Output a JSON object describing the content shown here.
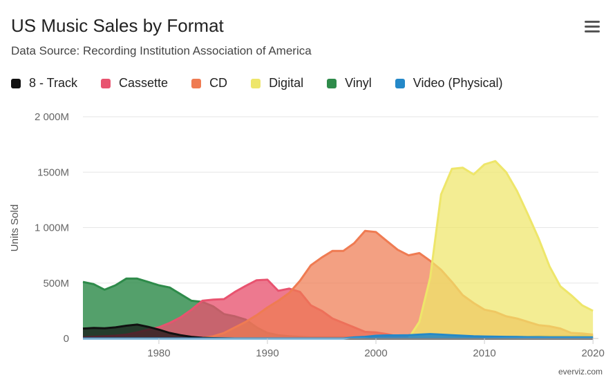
{
  "title": "US Music Sales by Format",
  "subtitle": "Data Source: Recording Institution Association of America",
  "credit": "everviz.com",
  "menu_icon": "hamburger-icon",
  "chart_data": {
    "type": "area",
    "title": "US Music Sales by Format",
    "subtitle": "Data Source: Recording Institution Association of America",
    "xlabel": "",
    "ylabel": "Units Sold",
    "xlim": [
      1973,
      2020
    ],
    "ylim": [
      0,
      2000
    ],
    "y_ticks": [
      "0",
      "500M",
      "1 000M",
      "1500M",
      "2 000M"
    ],
    "y_tick_values": [
      0,
      500,
      1000,
      1500,
      2000
    ],
    "x_ticks": [
      "1980",
      "1990",
      "2000",
      "2010",
      "2020"
    ],
    "x_tick_values": [
      1980,
      1990,
      2000,
      2010,
      2020
    ],
    "grid": true,
    "legend": "top-left",
    "x": [
      1973,
      1974,
      1975,
      1976,
      1977,
      1978,
      1979,
      1980,
      1981,
      1982,
      1983,
      1984,
      1985,
      1986,
      1987,
      1988,
      1989,
      1990,
      1991,
      1992,
      1993,
      1994,
      1995,
      1996,
      1997,
      1998,
      1999,
      2000,
      2001,
      2002,
      2003,
      2004,
      2005,
      2006,
      2007,
      2008,
      2009,
      2010,
      2011,
      2012,
      2013,
      2014,
      2015,
      2016,
      2017,
      2018,
      2019,
      2020
    ],
    "series": [
      {
        "name": "8 - Track",
        "color": "#111111",
        "values": [
          90,
          95,
          92,
          100,
          115,
          125,
          105,
          80,
          50,
          30,
          15,
          6,
          3,
          1,
          0,
          0,
          0,
          0,
          0,
          0,
          0,
          0,
          0,
          0,
          0,
          0,
          0,
          0,
          0,
          0,
          0,
          0,
          0,
          0,
          0,
          0,
          0,
          0,
          0,
          0,
          0,
          0,
          0,
          0,
          0,
          0,
          0,
          0
        ]
      },
      {
        "name": "Cassette",
        "color": "#e8536f",
        "values": [
          10,
          15,
          20,
          25,
          35,
          55,
          80,
          100,
          140,
          190,
          260,
          340,
          350,
          355,
          420,
          475,
          525,
          530,
          430,
          450,
          420,
          300,
          250,
          180,
          140,
          100,
          60,
          55,
          40,
          20,
          10,
          5,
          3,
          1,
          0,
          0,
          0,
          0,
          0,
          0,
          0,
          0,
          0,
          0,
          0,
          0,
          0,
          0
        ]
      },
      {
        "name": "CD",
        "color": "#ef7b52",
        "values": [
          0,
          0,
          0,
          0,
          0,
          0,
          0,
          0,
          0,
          0,
          1,
          6,
          20,
          50,
          100,
          150,
          210,
          280,
          340,
          410,
          520,
          660,
          730,
          790,
          790,
          860,
          970,
          960,
          880,
          800,
          750,
          770,
          700,
          620,
          510,
          390,
          320,
          260,
          240,
          200,
          180,
          150,
          120,
          110,
          90,
          50,
          45,
          35
        ]
      },
      {
        "name": "Digital",
        "color": "#eee66a",
        "values": [
          0,
          0,
          0,
          0,
          0,
          0,
          0,
          0,
          0,
          0,
          0,
          0,
          0,
          0,
          0,
          0,
          0,
          0,
          0,
          0,
          0,
          0,
          0,
          0,
          0,
          0,
          0,
          0,
          0,
          0,
          0,
          150,
          550,
          1300,
          1530,
          1540,
          1480,
          1570,
          1600,
          1500,
          1330,
          1120,
          900,
          650,
          470,
          390,
          300,
          250
        ]
      },
      {
        "name": "Vinyl",
        "color": "#2e8b4a",
        "values": [
          510,
          490,
          440,
          480,
          540,
          540,
          510,
          480,
          460,
          400,
          340,
          330,
          290,
          220,
          200,
          170,
          100,
          50,
          30,
          20,
          15,
          10,
          10,
          10,
          10,
          10,
          10,
          10,
          10,
          10,
          10,
          10,
          10,
          10,
          10,
          10,
          10,
          10,
          10,
          15,
          15,
          15,
          20,
          20,
          20,
          20,
          25,
          30
        ]
      },
      {
        "name": "Video (Physical)",
        "color": "#2488c8",
        "values": [
          0,
          0,
          0,
          0,
          0,
          0,
          0,
          0,
          0,
          0,
          0,
          0,
          0,
          0,
          0,
          0,
          0,
          0,
          0,
          0,
          0,
          0,
          0,
          0,
          0,
          10,
          15,
          25,
          28,
          28,
          30,
          35,
          40,
          35,
          30,
          25,
          20,
          18,
          16,
          15,
          14,
          12,
          12,
          10,
          10,
          10,
          10,
          10
        ]
      }
    ]
  }
}
